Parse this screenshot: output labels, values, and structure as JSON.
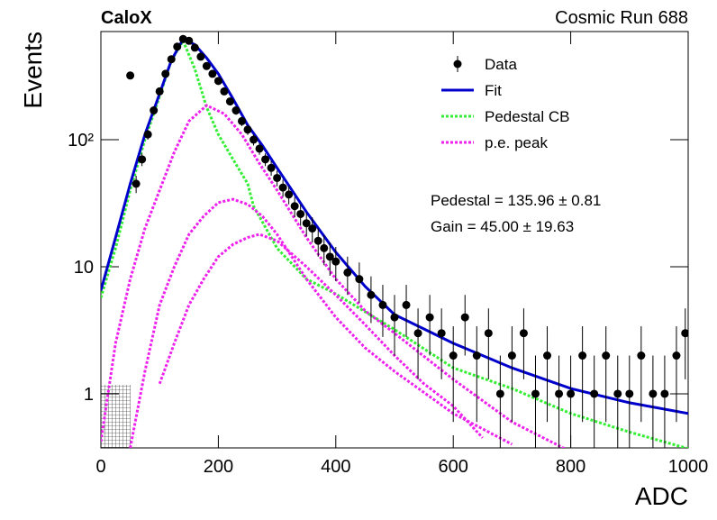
{
  "chart_data": {
    "type": "hist-fit",
    "title": "CaloX",
    "subtitle": "Cosmic Run 688",
    "x_label": "ADC",
    "y_label": "Events",
    "xlim": [
      0,
      1000
    ],
    "xticks": [
      0,
      200,
      400,
      600,
      800,
      1000
    ],
    "ylim": [
      0.375,
      710
    ],
    "yticks": [
      1,
      10,
      {
        "value": 100,
        "label": "10²"
      }
    ],
    "log_y": true,
    "legend": "upper right",
    "annotations": [
      "Pedestal = 135.96 ± 0.81",
      "Gain = 45.00 ± 19.63"
    ],
    "series": [
      {
        "name": "Data",
        "color": "#000000",
        "style": "points",
        "x": [
          50,
          60,
          70,
          80,
          90,
          100,
          110,
          120,
          130,
          140,
          150,
          160,
          170,
          180,
          190,
          200,
          210,
          220,
          230,
          240,
          250,
          260,
          270,
          280,
          290,
          300,
          310,
          320,
          330,
          340,
          350,
          360,
          370,
          380,
          390,
          400,
          420,
          440,
          460,
          480,
          500,
          520,
          540,
          560,
          580,
          600,
          620,
          640,
          660,
          680,
          700,
          720,
          740,
          760,
          780,
          800,
          820,
          840,
          860,
          880,
          900,
          920,
          940,
          960,
          980,
          995
        ],
        "values": [
          320,
          45,
          70,
          110,
          170,
          240,
          330,
          430,
          540,
          620,
          600,
          530,
          450,
          380,
          330,
          290,
          240,
          200,
          170,
          140,
          120,
          100,
          85,
          70,
          60,
          50,
          42,
          37,
          30,
          26,
          22,
          20,
          16,
          14,
          12,
          11,
          9,
          8,
          6,
          5,
          4,
          5,
          3,
          4,
          3,
          2,
          4,
          2,
          3,
          1,
          2,
          3,
          1,
          2,
          1,
          1,
          2,
          1,
          2,
          1,
          1,
          2,
          1,
          1,
          2,
          3
        ],
        "errors": [
          18,
          7,
          8,
          10,
          13,
          15,
          18,
          21,
          23,
          25,
          24,
          23,
          21,
          19,
          18,
          17,
          15,
          14,
          13,
          12,
          11,
          10,
          9,
          8,
          8,
          7,
          6.5,
          6,
          5.5,
          5,
          4.7,
          4.5,
          4,
          3.7,
          3.5,
          3.3,
          3,
          2.8,
          2.4,
          2.2,
          2,
          2.2,
          1.7,
          2,
          1.7,
          1.4,
          2,
          1.4,
          1.7,
          1,
          1.4,
          1.7,
          1,
          1.4,
          1,
          1,
          1.4,
          1,
          1.4,
          1,
          1,
          1.4,
          1,
          1,
          1.4,
          1.7
        ]
      },
      {
        "name": "Fit",
        "color": "#0000cc",
        "style": "solid",
        "x": [
          0,
          25,
          50,
          75,
          100,
          120,
          140,
          160,
          180,
          200,
          225,
          250,
          275,
          300,
          350,
          400,
          450,
          500,
          600,
          700,
          800,
          900,
          1000
        ],
        "values": [
          6.5,
          17,
          45,
          110,
          230,
          420,
          620,
          560,
          440,
          330,
          210,
          130,
          90,
          60,
          27,
          13,
          7,
          4.2,
          2.5,
          1.6,
          1.1,
          0.85,
          0.7
        ]
      },
      {
        "name": "Pedestal CB",
        "color": "#33ee33",
        "style": "dotted",
        "x": [
          0,
          25,
          50,
          75,
          100,
          120,
          140,
          160,
          180,
          200,
          225,
          250,
          260,
          300,
          350,
          400,
          500,
          600,
          700,
          800,
          900,
          1000
        ],
        "values": [
          5.7,
          14,
          40,
          100,
          220,
          420,
          600,
          360,
          180,
          110,
          70,
          45,
          30,
          14,
          8,
          6.1,
          3.2,
          1.6,
          1.1,
          0.7,
          0.5,
          0.37
        ]
      },
      {
        "name": "p.e. peak",
        "color": "#ee22ee",
        "style": "dotted",
        "curves": [
          {
            "x": [
              0,
              25,
              50,
              75,
              100,
              125,
              150,
              180,
              210,
              240,
              270,
              300,
              350,
              400,
              450,
              500,
              600,
              700,
              800
            ],
            "values": [
              0.42,
              2.5,
              8,
              20,
              40,
              80,
              140,
              186,
              160,
              110,
              65,
              40,
              17,
              8,
              4.5,
              3,
              1.3,
              0.6,
              0.35
            ]
          },
          {
            "x": [
              50,
              75,
              100,
              125,
              150,
              175,
              200,
              225,
              250,
              275,
              300,
              350,
              400,
              450,
              500,
              600,
              700
            ],
            "values": [
              0.375,
              1.5,
              5,
              10,
              18,
              25,
              32,
              34,
              31,
              25,
              18,
              8,
              4,
              2.3,
              1.5,
              0.7,
              0.4
            ]
          },
          {
            "x": [
              100,
              125,
              150,
              175,
              200,
              225,
              250,
              270,
              300,
              350,
              400,
              450,
              500,
              550,
              600,
              650
            ],
            "values": [
              1.2,
              2.5,
              5,
              8,
              12,
              15,
              17,
              18,
              16,
              10,
              6,
              3.5,
              2,
              1.2,
              0.8,
              0.45
            ]
          }
        ]
      }
    ]
  }
}
